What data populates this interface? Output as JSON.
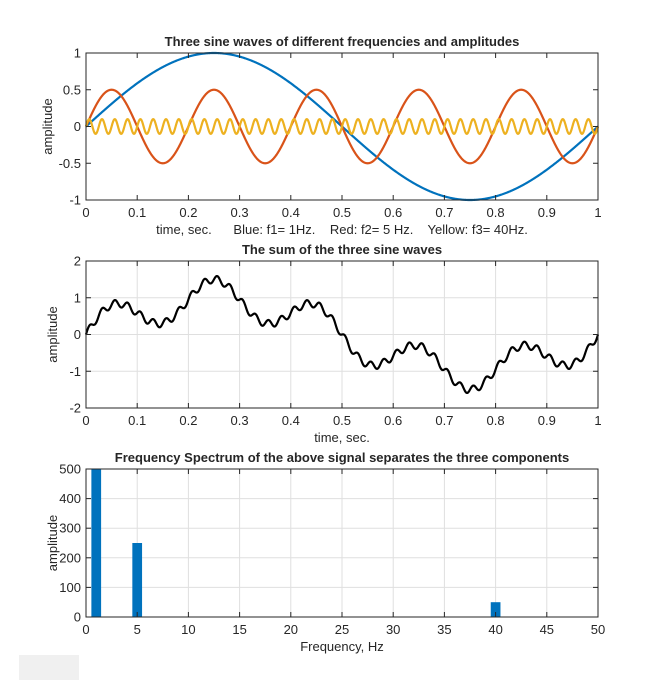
{
  "chart_data": [
    {
      "type": "line",
      "title": "Three sine waves of different frequencies and amplitudes",
      "xlabel": "time, sec.      Blue: f1= 1Hz.    Red: f2= 5 Hz.    Yellow: f3= 40Hz.",
      "ylabel": "amplitude",
      "xlim": [
        0,
        1
      ],
      "ylim": [
        -1,
        1
      ],
      "xticks": [
        "0",
        "0.1",
        "0.2",
        "0.3",
        "0.4",
        "0.5",
        "0.6",
        "0.7",
        "0.8",
        "0.9",
        "1"
      ],
      "yticks": [
        "-1",
        "-0.5",
        "0",
        "0.5",
        "1"
      ],
      "grid": false,
      "series": [
        {
          "function": "sine",
          "frequency_hz": 1,
          "amplitude": 1,
          "color": "#0072bd"
        },
        {
          "function": "sine",
          "frequency_hz": 5,
          "amplitude": 0.5,
          "color": "#d95319"
        },
        {
          "function": "sine",
          "frequency_hz": 40,
          "amplitude": 0.1,
          "color": "#edb120"
        }
      ]
    },
    {
      "type": "line",
      "title": "The sum of the three sine waves",
      "xlabel": "time, sec.",
      "ylabel": "amplitude",
      "xlim": [
        0,
        1
      ],
      "ylim": [
        -2,
        2
      ],
      "xticks": [
        "0",
        "0.1",
        "0.2",
        "0.3",
        "0.4",
        "0.5",
        "0.6",
        "0.7",
        "0.8",
        "0.9",
        "1"
      ],
      "yticks": [
        "-2",
        "-1",
        "0",
        "1",
        "2"
      ],
      "grid": true,
      "series": [
        {
          "function": "sum of sines",
          "components": [
            [
              1,
              1
            ],
            [
              5,
              0.5
            ],
            [
              40,
              0.1
            ]
          ],
          "color": "#000000"
        }
      ]
    },
    {
      "type": "bar",
      "title": "Frequency Spectrum of the above signal separates the three components",
      "xlabel": "Frequency, Hz",
      "ylabel": "amplitude",
      "xlim": [
        0,
        50
      ],
      "ylim": [
        0,
        500
      ],
      "xticks": [
        "0",
        "5",
        "10",
        "15",
        "20",
        "25",
        "30",
        "35",
        "40",
        "45",
        "50"
      ],
      "yticks": [
        "0",
        "100",
        "200",
        "300",
        "400",
        "500"
      ],
      "grid": true,
      "x": [
        1,
        5,
        40
      ],
      "values": [
        500,
        250,
        50
      ],
      "color": "#0072bd"
    }
  ]
}
